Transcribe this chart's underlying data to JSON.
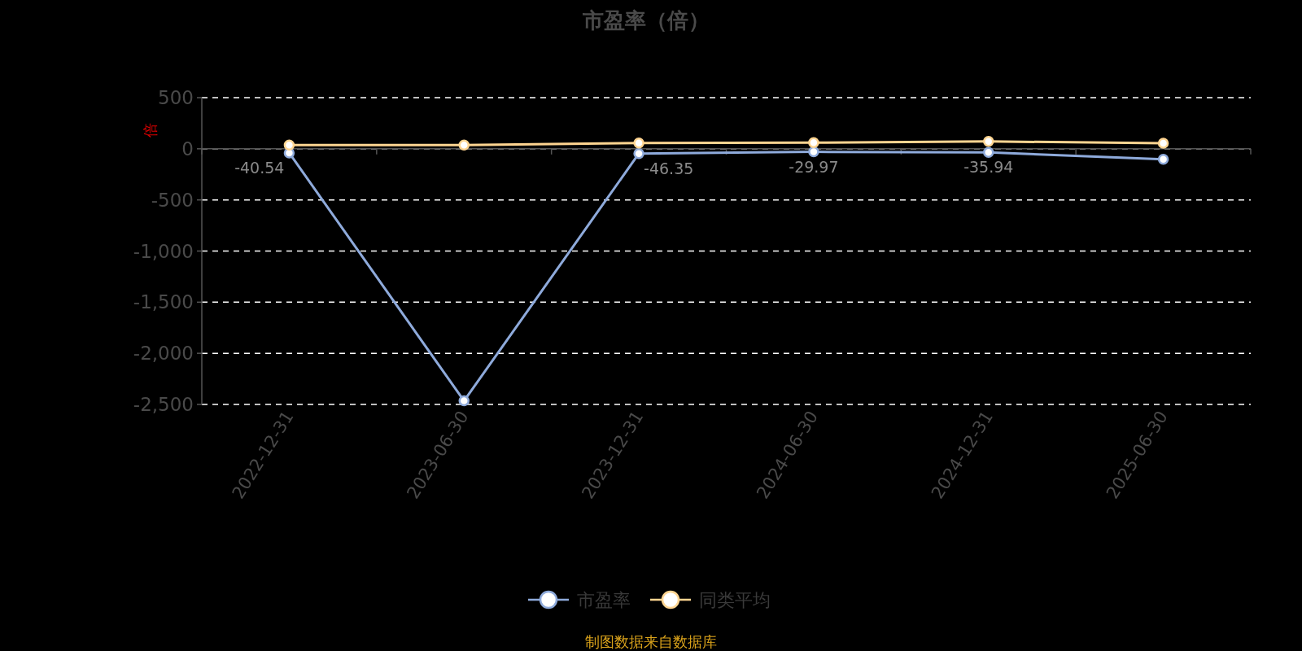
{
  "chart_data": {
    "type": "line",
    "title": "市盈率（倍）",
    "ylabel": "倍",
    "categories": [
      "2022-12-31",
      "2023-06-30",
      "2023-12-31",
      "2024-06-30",
      "2024-12-31",
      "2025-06-30"
    ],
    "series": [
      {
        "name": "市盈率",
        "color": "#8eaadb",
        "values": [
          -40.54,
          -2465,
          -46.35,
          -29.97,
          -35.94,
          -102
        ],
        "value_labels": [
          "-40.54",
          null,
          "-46.35",
          "-29.97",
          "-35.94",
          null
        ]
      },
      {
        "name": "同类平均",
        "color": "#ffd591",
        "values": [
          36,
          36,
          56,
          60,
          72,
          54
        ]
      }
    ],
    "ylim": [
      -2500,
      500
    ],
    "yticks": [
      {
        "value": -2500,
        "label": "-2,500"
      },
      {
        "value": -2000,
        "label": "-2,000"
      },
      {
        "value": -1500,
        "label": "-1,500"
      },
      {
        "value": -1000,
        "label": "-1,000"
      },
      {
        "value": -500,
        "label": "-500"
      },
      0,
      500
    ],
    "grid": "y",
    "legend": "bottom",
    "marker": "circle",
    "annotations": [
      "制图数据来自数据库"
    ]
  }
}
